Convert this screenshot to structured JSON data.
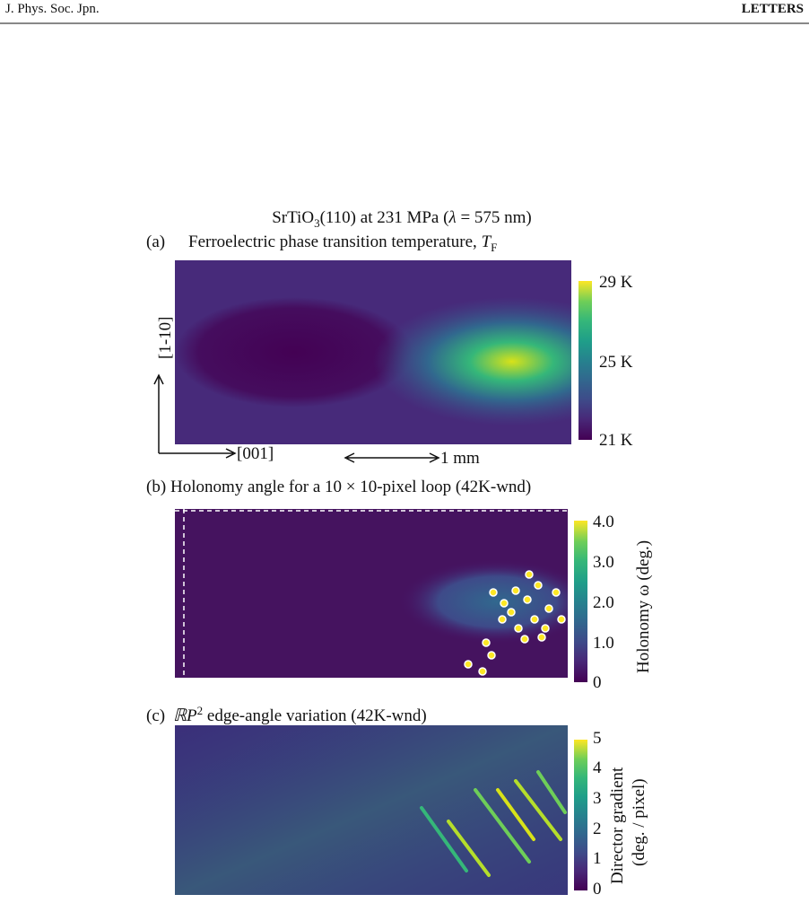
{
  "header": {
    "journal": "J. Phys. Soc. Jpn.",
    "section": "LETTERS"
  },
  "figure": {
    "title": {
      "prefix": "SrTiO",
      "subscript": "3",
      "middle": "(110) at 231 MPa (",
      "symbol": "λ",
      "suffix": " = 575 nm)"
    },
    "panels": [
      {
        "label": "(a)",
        "title": "Ferroelectric phase transition temperature, ",
        "title_symbol": "T",
        "title_subscript": "F",
        "colorbar_ticks": [
          "29 K",
          "25 K",
          "21 K"
        ],
        "axis_y": "[1-10]",
        "axis_x": "[001]",
        "scale_bar": "1 mm"
      },
      {
        "label": "(b)",
        "title": "Holonomy angle for a 10 × 10-pixel loop (42K-wnd)",
        "colorbar_ticks": [
          "4.0",
          "3.0",
          "2.0",
          "1.0",
          "0"
        ],
        "colorbar_label": "Holonomy ω (deg.)"
      },
      {
        "label": "(c)",
        "title_symbol": "ℝP",
        "title_superscript": "2",
        "title": " edge-angle variation (42K-wnd)",
        "colorbar_ticks": [
          "5",
          "4",
          "3",
          "2",
          "1",
          "0"
        ],
        "colorbar_label": [
          "Director gradient",
          "(deg. / pixel)"
        ]
      }
    ]
  }
}
